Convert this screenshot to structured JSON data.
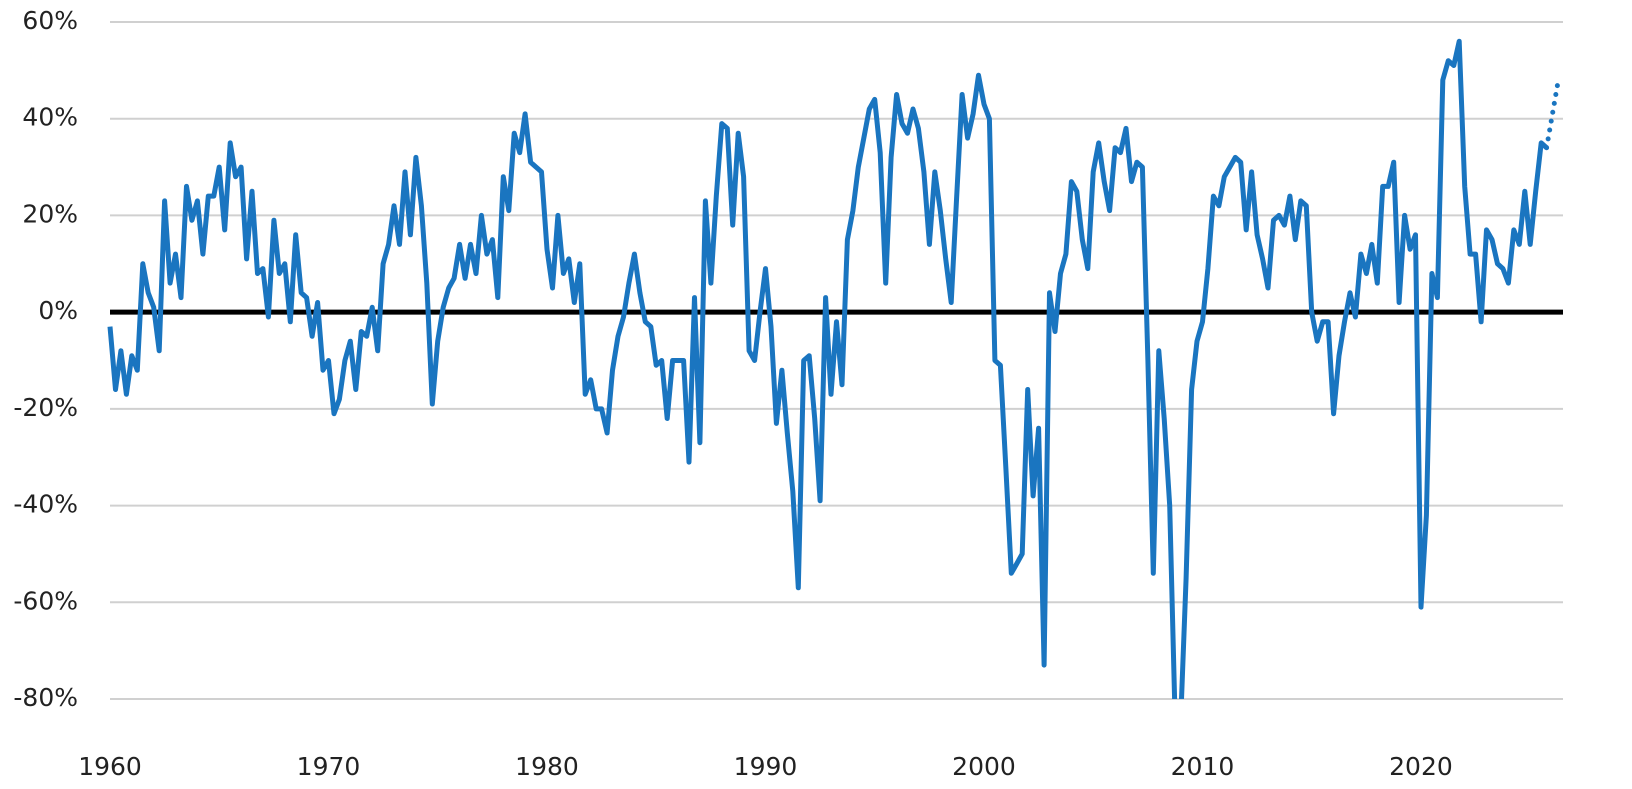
{
  "chart_data": {
    "type": "line",
    "xlim": [
      1960,
      2026.5
    ],
    "xticks": [
      1960,
      1970,
      1980,
      1990,
      2000,
      2010,
      2020
    ],
    "ylim": [
      -80,
      60
    ],
    "yticks": [
      {
        "value": -80,
        "label": "-80%"
      },
      {
        "value": -60,
        "label": "-60%"
      },
      {
        "value": -40,
        "label": "-40%"
      },
      {
        "value": -20,
        "label": "-20%"
      },
      {
        "value": 0,
        "label": "0%"
      },
      {
        "value": 20,
        "label": "20%"
      },
      {
        "value": 40,
        "label": "40%"
      },
      {
        "value": 60,
        "label": "60%"
      }
    ],
    "grid": true,
    "series": [
      {
        "color": "#1a75c0",
        "line_style": "solid",
        "x": [
          1960,
          1960.25,
          1960.5,
          1960.75,
          1961,
          1961.25,
          1961.5,
          1961.75,
          1962,
          1962.25,
          1962.5,
          1962.75,
          1963,
          1963.25,
          1963.5,
          1963.75,
          1964,
          1964.25,
          1964.5,
          1964.75,
          1965,
          1965.25,
          1965.5,
          1965.75,
          1966,
          1966.25,
          1966.5,
          1966.75,
          1967,
          1967.25,
          1967.5,
          1967.75,
          1968,
          1968.25,
          1968.5,
          1968.75,
          1969,
          1969.25,
          1969.5,
          1969.75,
          1970,
          1970.25,
          1970.5,
          1970.75,
          1971,
          1971.25,
          1971.5,
          1971.75,
          1972,
          1972.25,
          1972.5,
          1972.75,
          1973,
          1973.25,
          1973.5,
          1973.75,
          1974,
          1974.25,
          1974.5,
          1974.75,
          1975,
          1975.25,
          1975.5,
          1975.75,
          1976,
          1976.25,
          1976.5,
          1976.75,
          1977,
          1977.25,
          1977.5,
          1977.75,
          1978,
          1978.25,
          1978.5,
          1978.75,
          1979,
          1979.25,
          1979.5,
          1979.75,
          1980,
          1980.25,
          1980.5,
          1980.75,
          1981,
          1981.25,
          1981.5,
          1981.75,
          1982,
          1982.25,
          1982.5,
          1982.75,
          1983,
          1983.25,
          1983.5,
          1983.75,
          1984,
          1984.25,
          1984.5,
          1984.75,
          1985,
          1985.25,
          1985.5,
          1985.75,
          1986,
          1986.25,
          1986.5,
          1986.75,
          1987,
          1987.25,
          1987.5,
          1987.75,
          1988,
          1988.25,
          1988.5,
          1988.75,
          1989,
          1989.25,
          1989.5,
          1989.75,
          1990,
          1990.25,
          1990.5,
          1990.75,
          1991,
          1991.25,
          1991.5,
          1991.75,
          1992,
          1992.25,
          1992.5,
          1992.75,
          1993,
          1993.25,
          1993.5,
          1993.75,
          1994,
          1994.25,
          1994.5,
          1994.75,
          1995,
          1995.25,
          1995.5,
          1995.75,
          1996,
          1996.25,
          1996.5,
          1996.75,
          1997,
          1997.25,
          1997.5,
          1997.75,
          1998,
          1998.25,
          1998.5,
          1998.75,
          1999,
          1999.25,
          1999.5,
          1999.75,
          2000,
          2000.25,
          2000.5,
          2000.75,
          2001,
          2001.25,
          2001.5,
          2001.75,
          2002,
          2002.25,
          2002.5,
          2002.75,
          2003,
          2003.25,
          2003.5,
          2003.75,
          2004,
          2004.25,
          2004.5,
          2004.75,
          2005,
          2005.25,
          2005.5,
          2005.75,
          2006,
          2006.25,
          2006.5,
          2006.75,
          2007,
          2007.25,
          2007.5,
          2007.75,
          2008,
          2008.25,
          2008.5,
          2008.75,
          2009,
          2009.25,
          2009.5,
          2009.75,
          2010,
          2010.25,
          2010.5,
          2010.75,
          2011,
          2011.25,
          2011.5,
          2011.75,
          2012,
          2012.25,
          2012.5,
          2012.75,
          2013,
          2013.25,
          2013.5,
          2013.75,
          2014,
          2014.25,
          2014.5,
          2014.75,
          2015,
          2015.25,
          2015.5,
          2015.75,
          2016,
          2016.25,
          2016.5,
          2016.75,
          2017,
          2017.25,
          2017.5,
          2017.75,
          2018,
          2018.25,
          2018.5,
          2018.75,
          2019,
          2019.25,
          2019.5,
          2019.75,
          2020,
          2020.25,
          2020.5,
          2020.75,
          2021,
          2021.25,
          2021.5,
          2021.75,
          2022,
          2022.25,
          2022.5,
          2022.75,
          2023,
          2023.25,
          2023.5,
          2023.75,
          2024,
          2024.25,
          2024.5,
          2024.75,
          2025,
          2025.25,
          2025.5,
          2025.75
        ],
        "values": [
          -3,
          -16,
          -8,
          -17,
          -9,
          -12,
          10,
          4,
          1,
          -8,
          23,
          6,
          12,
          3,
          26,
          19,
          23,
          12,
          24,
          24,
          30,
          17,
          35,
          28,
          30,
          11,
          25,
          8,
          9,
          -1,
          19,
          8,
          10,
          -2,
          16,
          4,
          3,
          -5,
          2,
          -12,
          -10,
          -21,
          -18,
          -10,
          -6,
          -16,
          -4,
          -5,
          1,
          -8,
          10,
          14,
          22,
          14,
          29,
          16,
          32,
          22,
          6,
          -19,
          -6,
          1,
          5,
          7,
          14,
          7,
          14,
          8,
          20,
          12,
          15,
          3,
          28,
          21,
          37,
          33,
          41,
          31,
          30,
          29,
          13,
          5,
          20,
          8,
          11,
          2,
          10,
          -17,
          -14,
          -20,
          -20,
          -25,
          -12,
          -5,
          -1,
          6,
          12,
          4,
          -2,
          -3,
          -11,
          -10,
          -22,
          -10,
          -10,
          -10,
          -31,
          3,
          -27,
          23,
          6,
          24,
          39,
          38,
          18,
          37,
          28,
          -8,
          -10,
          0,
          9,
          -3,
          -23,
          -12,
          -25,
          -37,
          -57,
          -10,
          -9,
          -22,
          -39,
          3,
          -17,
          -2,
          -15,
          15,
          21,
          30,
          36,
          42,
          44,
          33,
          6,
          32,
          45,
          39,
          37,
          42,
          38,
          29,
          14,
          29,
          21,
          11,
          2,
          24,
          45,
          36,
          41,
          49,
          43,
          40,
          -10,
          -11,
          -32,
          -54,
          -52,
          -50,
          -16,
          -38,
          -24,
          -73,
          4,
          -4,
          8,
          12,
          27,
          25,
          15,
          9,
          29,
          35,
          27,
          21,
          34,
          33,
          38,
          27,
          31,
          30,
          -10,
          -54,
          -8,
          -22,
          -40,
          -85,
          -85,
          -55,
          -16,
          -6,
          -2,
          9,
          24,
          22,
          28,
          30,
          32,
          31,
          17,
          29,
          16,
          11,
          5,
          19,
          20,
          18,
          24,
          15,
          23,
          22,
          0,
          -6,
          -2,
          -2,
          -21,
          -9,
          -2,
          4,
          -1,
          12,
          8,
          14,
          6,
          26,
          26,
          31,
          2,
          20,
          13,
          16,
          -61,
          -42,
          8,
          3,
          48,
          52,
          51,
          56,
          26,
          12,
          12,
          -2,
          17,
          15,
          10,
          9,
          6,
          17,
          14,
          25,
          14,
          25,
          35,
          34
        ]
      },
      {
        "color": "#1a75c0",
        "line_style": "dotted",
        "x": [
          2025.75,
          2026.25
        ],
        "values": [
          34,
          47
        ]
      }
    ]
  }
}
